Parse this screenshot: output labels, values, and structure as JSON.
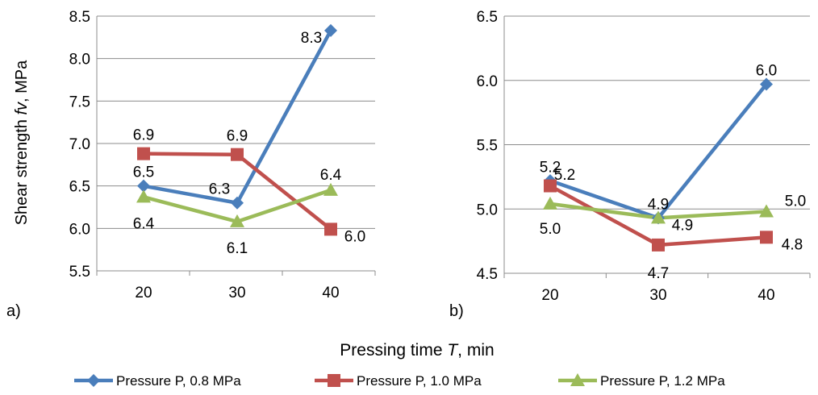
{
  "chart_data": [
    {
      "type": "line",
      "panel_label": "a)",
      "ylabel_prefix": "Shear strength ",
      "ylabel_italic": "fv",
      "ylabel_suffix": ", MPa",
      "ylim": [
        5.5,
        8.5
      ],
      "yticks": [
        "5.5",
        "6.0",
        "6.5",
        "7.0",
        "7.5",
        "8.0",
        "8.5"
      ],
      "categories": [
        "20",
        "30",
        "40"
      ],
      "grid": true,
      "series": [
        {
          "name": "Pressure P, 0.8 MPa",
          "color": "#4a7ebb",
          "marker": "diamond",
          "values": [
            6.5,
            6.3,
            8.33
          ],
          "labels": [
            "6.5",
            "6.3",
            "8.3"
          ]
        },
        {
          "name": "Pressure P, 1.0 MPa",
          "color": "#c0504d",
          "marker": "square",
          "values": [
            6.88,
            6.87,
            5.99
          ],
          "labels": [
            "6.9",
            "6.9",
            "6.0"
          ]
        },
        {
          "name": "Pressure P, 1.2 MPa",
          "color": "#9bbb59",
          "marker": "triangle",
          "values": [
            6.37,
            6.08,
            6.45
          ],
          "labels": [
            "6.4",
            "6.1",
            "6.4"
          ]
        }
      ]
    },
    {
      "type": "line",
      "panel_label": "b)",
      "ylim": [
        4.5,
        6.5
      ],
      "yticks": [
        "4.5",
        "5.0",
        "5.5",
        "6.0",
        "6.5"
      ],
      "categories": [
        "20",
        "30",
        "40"
      ],
      "grid": true,
      "series": [
        {
          "name": "Pressure P, 0.8 MPa",
          "color": "#4a7ebb",
          "marker": "diamond",
          "values": [
            5.22,
            4.93,
            5.97
          ],
          "labels": [
            "5.2",
            "4.9",
            "6.0"
          ]
        },
        {
          "name": "Pressure P, 1.0 MPa",
          "color": "#c0504d",
          "marker": "square",
          "values": [
            5.18,
            4.72,
            4.78
          ],
          "labels": [
            "5.2",
            "4.7",
            "4.8"
          ]
        },
        {
          "name": "Pressure P, 1.2 MPa",
          "color": "#9bbb59",
          "marker": "triangle",
          "values": [
            5.04,
            4.93,
            4.98
          ],
          "labels": [
            "5.0",
            "4.9",
            "5.0"
          ]
        }
      ]
    }
  ],
  "shared_xlabel_prefix": "Pressing time ",
  "shared_xlabel_italic": "T",
  "shared_xlabel_suffix": ", min",
  "legend": [
    {
      "name": "Pressure P, 0.8 MPa",
      "color": "#4a7ebb",
      "marker": "diamond"
    },
    {
      "name": "Pressure P, 1.0 MPa",
      "color": "#c0504d",
      "marker": "square"
    },
    {
      "name": "Pressure P, 1.2 MPa",
      "color": "#9bbb59",
      "marker": "triangle"
    }
  ],
  "legend_placement": "bottom"
}
